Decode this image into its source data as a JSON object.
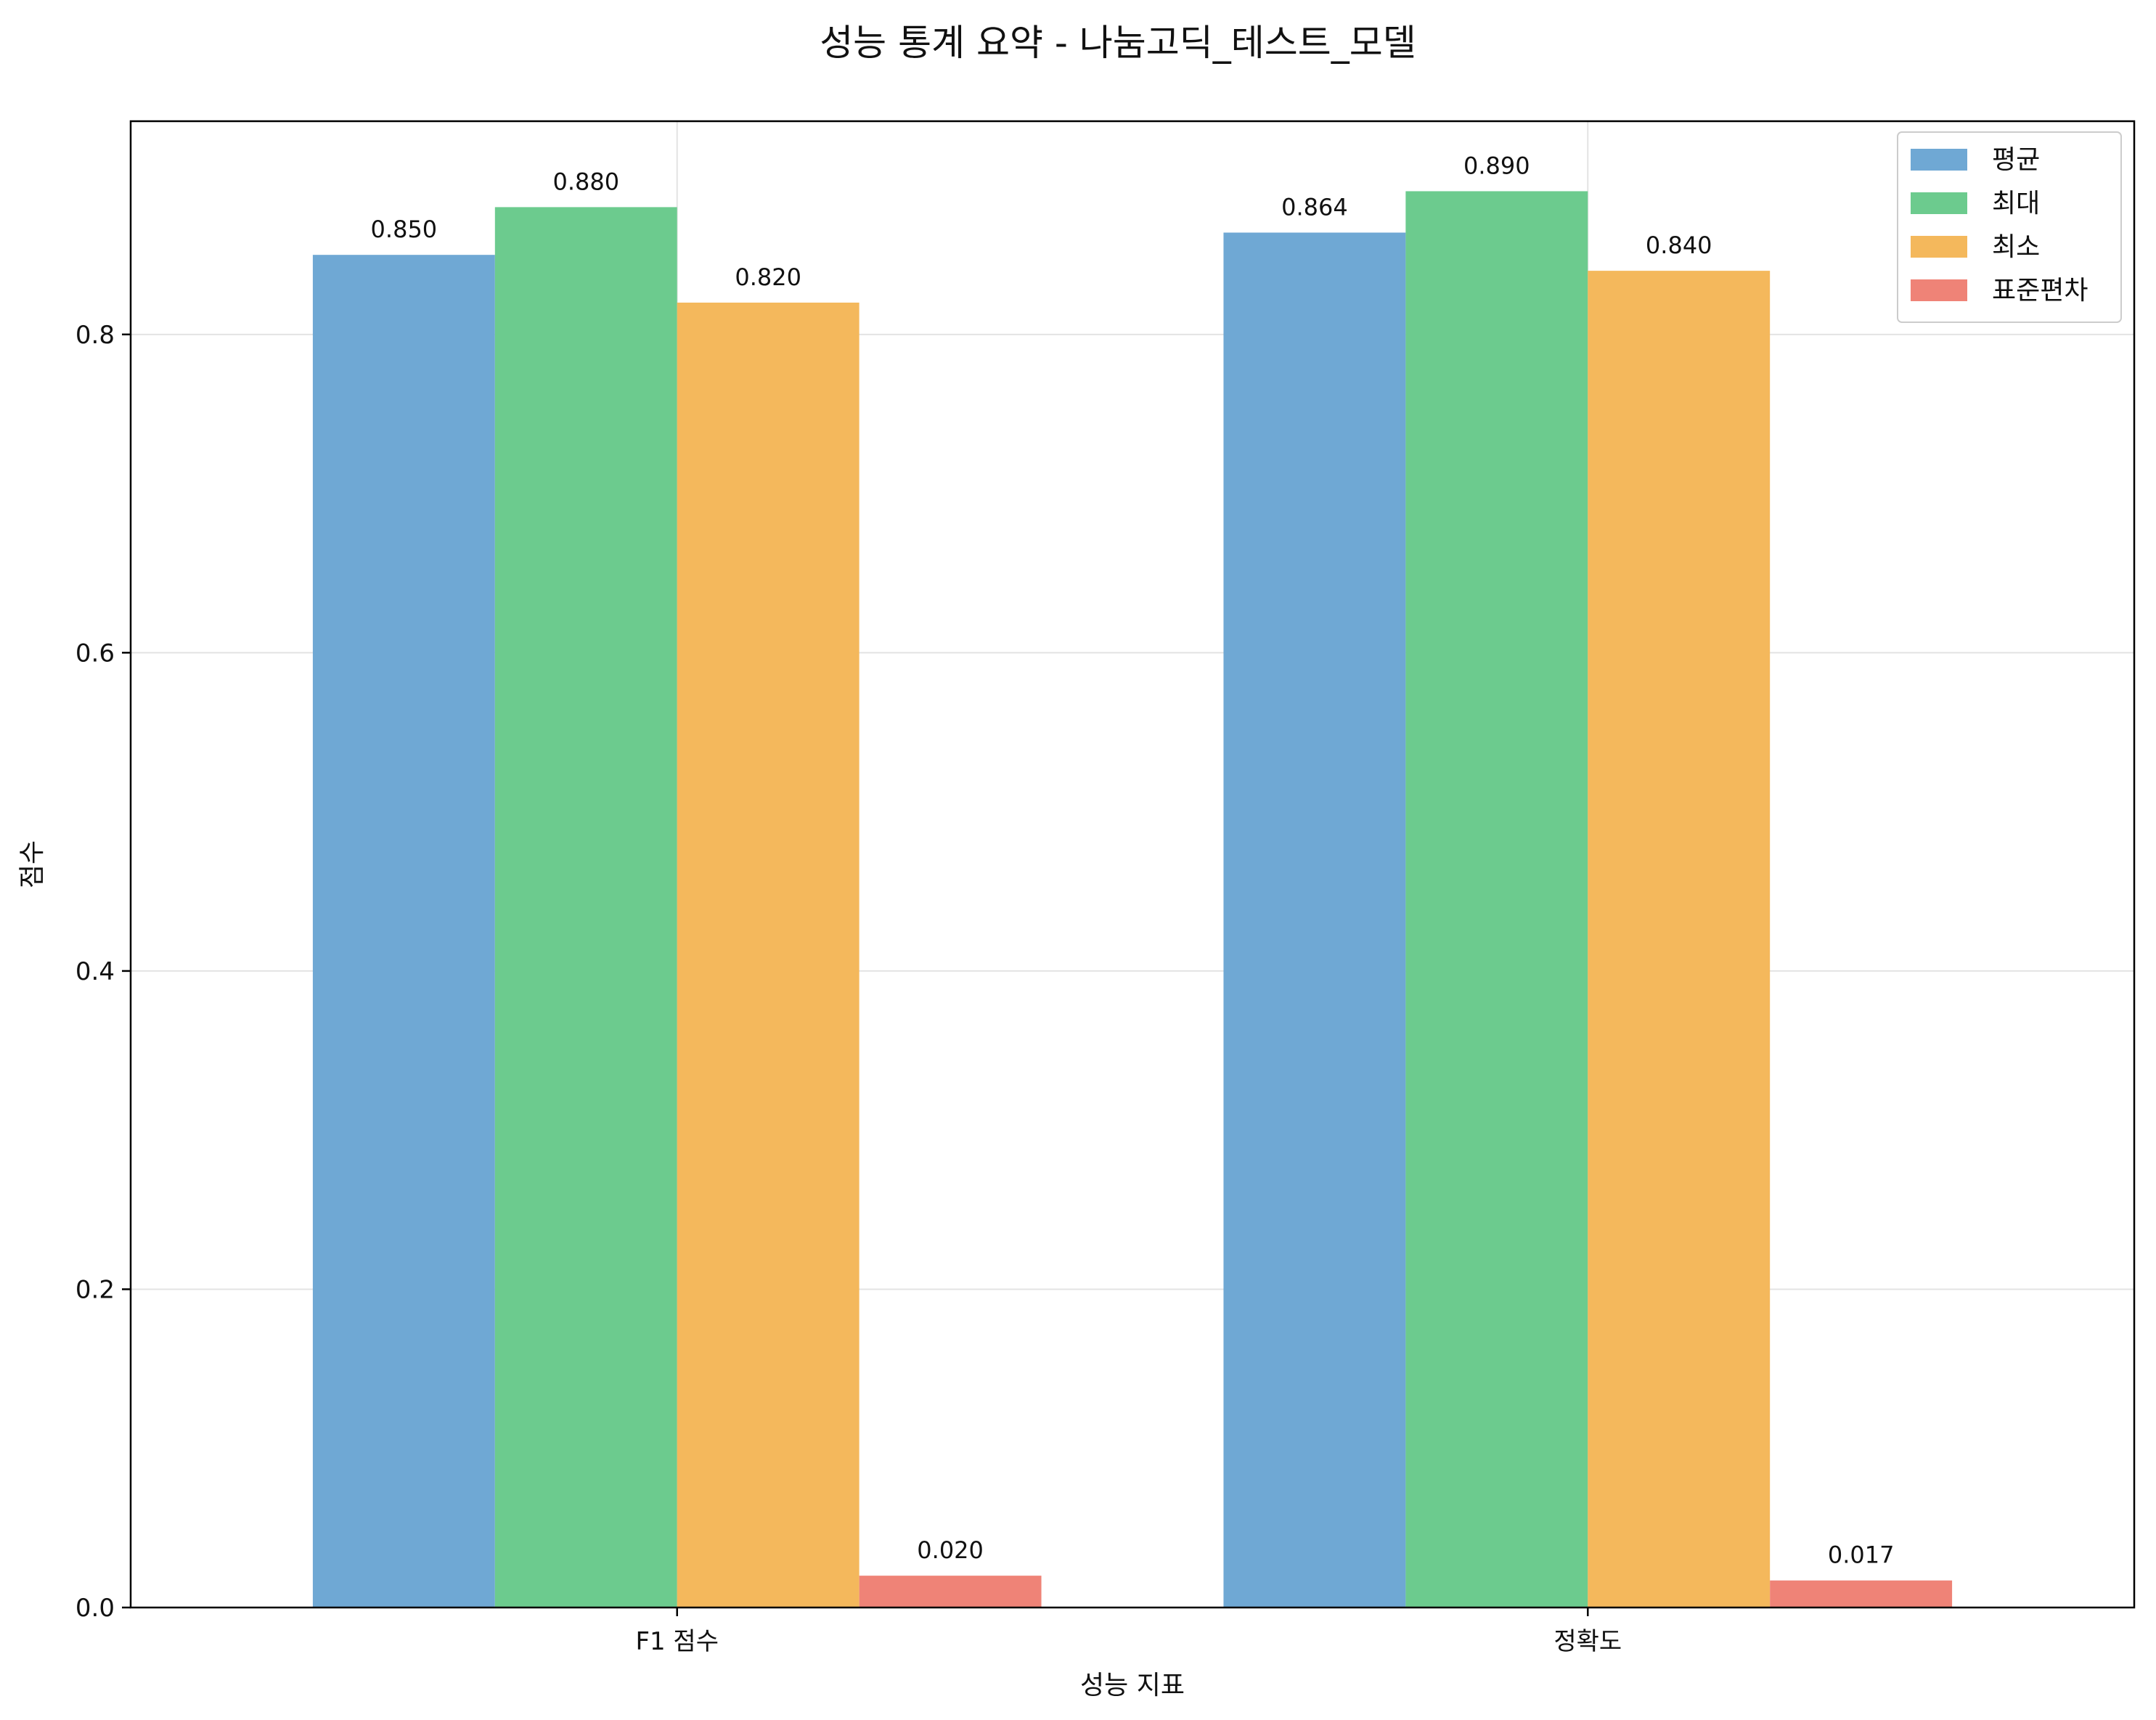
{
  "chart_data": {
    "type": "bar",
    "title": "성능 통계 요약 - 나눔고딕_테스트_모델",
    "xlabel": "성능 지표",
    "ylabel": "점수",
    "categories": [
      "F1 점수",
      "정확도"
    ],
    "ylim": [
      0,
      0.934
    ],
    "yticks": [
      0.0,
      0.2,
      0.4,
      0.6,
      0.8
    ],
    "ytick_labels": [
      "0.0",
      "0.2",
      "0.4",
      "0.6",
      "0.8"
    ],
    "grid": true,
    "legend_position": "top-right",
    "series": [
      {
        "name": "평균",
        "color": "#6fa8d4",
        "values": [
          0.85,
          0.864
        ],
        "labels": [
          "0.850",
          "0.864"
        ]
      },
      {
        "name": "최대",
        "color": "#6ccb8e",
        "values": [
          0.88,
          0.89
        ],
        "labels": [
          "0.880",
          "0.890"
        ]
      },
      {
        "name": "최소",
        "color": "#f4b85c",
        "values": [
          0.82,
          0.84
        ],
        "labels": [
          "0.820",
          "0.840"
        ]
      },
      {
        "name": "표준편차",
        "color": "#ef8377",
        "values": [
          0.02,
          0.017
        ],
        "labels": [
          "0.020",
          "0.017"
        ]
      }
    ]
  }
}
